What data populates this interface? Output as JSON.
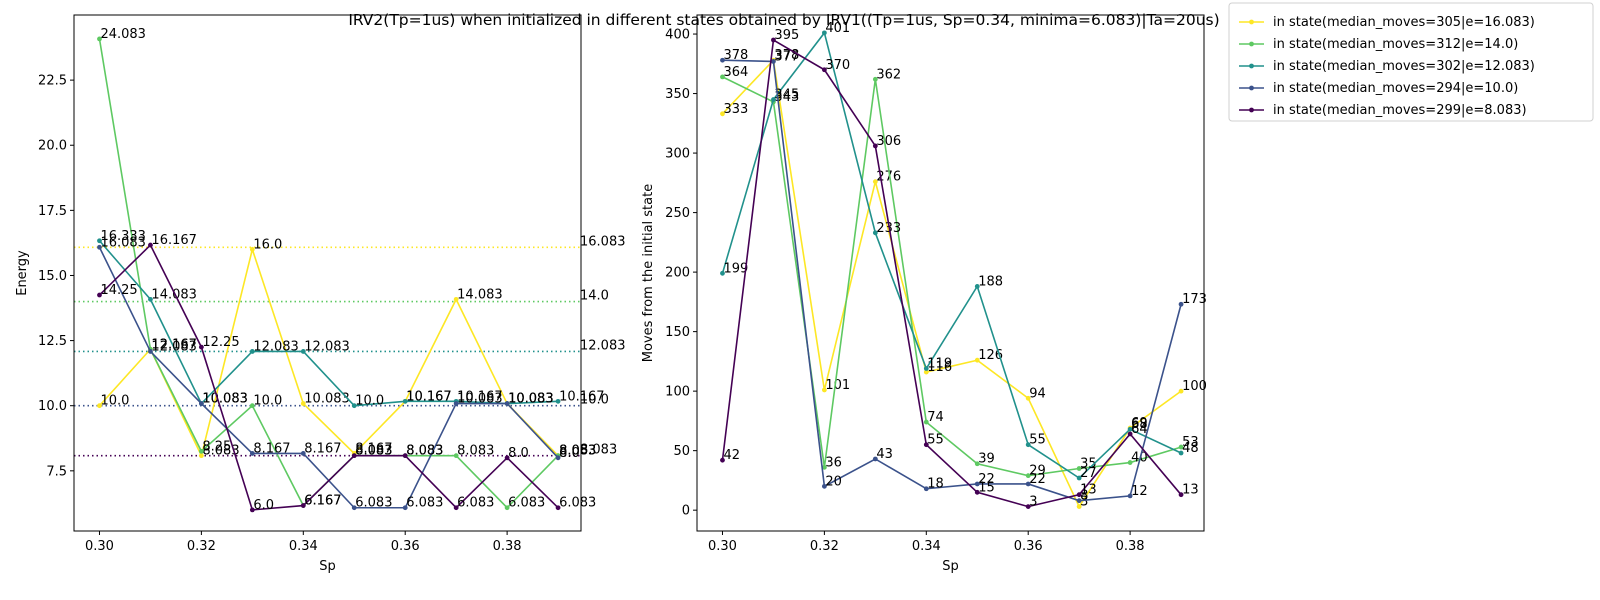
{
  "figure": {
    "suptitle": "IRV2(Tp=1us) when initialized in different states obtained by IRV1((Tp=1us, Sp=0.34, minima=6.083)|Ta=20us)"
  },
  "chart_data": [
    {
      "type": "line",
      "panel": "left",
      "xlabel": "Sp",
      "ylabel": "Energy",
      "xlim": [
        0.295,
        0.3945
      ],
      "ylim": [
        5.19,
        25.0
      ],
      "xticks": [
        "0.30",
        "0.32",
        "0.34",
        "0.36",
        "0.38"
      ],
      "xtick_values": [
        0.3,
        0.32,
        0.34,
        0.36,
        0.38
      ],
      "yticks": [
        "7.5",
        "10.0",
        "12.5",
        "15.0",
        "17.5",
        "20.0",
        "22.5"
      ],
      "ytick_values": [
        7.5,
        10.0,
        12.5,
        15.0,
        17.5,
        20.0,
        22.5
      ],
      "grid": false,
      "x": [
        0.3,
        0.31,
        0.32,
        0.33,
        0.34,
        0.35,
        0.36,
        0.37,
        0.38,
        0.39
      ],
      "series": [
        {
          "name": "in state(median_moves=305|e=16.083)",
          "color": "#fde725",
          "values": [
            10.0,
            12.167,
            8.083,
            16.0,
            10.083,
            8.167,
            10.167,
            14.083,
            10.083,
            8.083
          ],
          "labels": [
            "10.0",
            "12.167",
            "8.083",
            "16.0",
            "10.083",
            "8.167",
            "10.167",
            "14.083",
            "10.083",
            "8.083"
          ],
          "reference": 16.083,
          "reference_label": "16.083"
        },
        {
          "name": "in state(median_moves=312|e=14.0)",
          "color": "#5ec962",
          "values": [
            24.083,
            12.167,
            8.25,
            10.0,
            6.167,
            8.083,
            8.083,
            8.083,
            6.083,
            8.083
          ],
          "labels": [
            "24.083",
            "12.167",
            "8.25",
            "10.0",
            "6.167",
            "8.083",
            "8.083",
            "8.083",
            "6.083",
            "8.083"
          ],
          "reference": 14.0,
          "reference_label": "14.0"
        },
        {
          "name": "in state(median_moves=302|e=12.083)",
          "color": "#21918c",
          "values": [
            16.333,
            14.083,
            10.083,
            12.083,
            12.083,
            10.0,
            10.167,
            10.167,
            10.083,
            10.167
          ],
          "labels": [
            "16.333",
            "14.083",
            "10.083",
            "12.083",
            "12.083",
            "10.0",
            "10.167",
            "10.167",
            "10.083",
            "10.167"
          ],
          "reference": 12.083,
          "reference_label": "12.083"
        },
        {
          "name": "in state(median_moves=294|e=10.0)",
          "color": "#3b528b",
          "values": [
            16.083,
            12.083,
            10.083,
            8.167,
            8.167,
            6.083,
            6.083,
            10.083,
            10.083,
            8.0
          ],
          "labels": [
            "16.083",
            "12.083",
            "10.083",
            "8.167",
            "8.167",
            "6.083",
            "6.083",
            "10.083",
            "10.083",
            "8.0"
          ],
          "reference": 10.0,
          "reference_label": "10.0"
        },
        {
          "name": "in state(median_moves=299|e=8.083)",
          "color": "#440154",
          "values": [
            14.25,
            16.167,
            12.25,
            6.0,
            6.167,
            8.083,
            8.083,
            6.083,
            8.0,
            6.083
          ],
          "labels": [
            "14.25",
            "16.167",
            "12.25",
            "6.0",
            "6.167",
            "8.083",
            "8.083",
            "6.083",
            "8.0",
            "6.083"
          ],
          "reference": 8.083,
          "reference_label": "8.083"
        }
      ]
    },
    {
      "type": "line",
      "panel": "right",
      "xlabel": "Sp",
      "ylabel": "Moves from the initial state",
      "xlim": [
        0.295,
        0.3945
      ],
      "ylim": [
        -17.5,
        416
      ],
      "xticks": [
        "0.30",
        "0.32",
        "0.34",
        "0.36",
        "0.38"
      ],
      "xtick_values": [
        0.3,
        0.32,
        0.34,
        0.36,
        0.38
      ],
      "yticks": [
        "0",
        "50",
        "100",
        "150",
        "200",
        "250",
        "300",
        "350",
        "400"
      ],
      "ytick_values": [
        0,
        50,
        100,
        150,
        200,
        250,
        300,
        350,
        400
      ],
      "grid": false,
      "legend": "outside-top-right",
      "x": [
        0.3,
        0.31,
        0.32,
        0.33,
        0.34,
        0.35,
        0.36,
        0.37,
        0.38,
        0.39
      ],
      "series": [
        {
          "name": "in state(median_moves=305|e=16.083)",
          "color": "#fde725",
          "values": [
            333,
            378,
            101,
            276,
            116,
            126,
            94,
            3,
            69,
            100
          ],
          "labels": [
            "333",
            "378",
            "101",
            "276",
            "116",
            "126",
            "94",
            "3",
            "69",
            "100"
          ]
        },
        {
          "name": "in state(median_moves=312|e=14.0)",
          "color": "#5ec962",
          "values": [
            364,
            343,
            36,
            362,
            74,
            39,
            29,
            35,
            40,
            53
          ],
          "labels": [
            "364",
            "343",
            "36",
            "362",
            "74",
            "39",
            "29",
            "35",
            "40",
            "53"
          ]
        },
        {
          "name": "in state(median_moves=302|e=12.083)",
          "color": "#21918c",
          "values": [
            199,
            345,
            401,
            233,
            119,
            188,
            55,
            27,
            68,
            48
          ],
          "labels": [
            "199",
            "345",
            "401",
            "233",
            "119",
            "188",
            "55",
            "27",
            "68",
            "48"
          ]
        },
        {
          "name": "in state(median_moves=294|e=10.0)",
          "color": "#3b528b",
          "values": [
            378,
            377,
            20,
            43,
            18,
            22,
            22,
            8,
            12,
            173
          ],
          "labels": [
            "378",
            "377",
            "20",
            "43",
            "18",
            "22",
            "22",
            "8",
            "12",
            "173"
          ]
        },
        {
          "name": "in state(median_moves=299|e=8.083)",
          "color": "#440154",
          "values": [
            42,
            395,
            370,
            306,
            55,
            15,
            3,
            13,
            64,
            13
          ],
          "labels": [
            "42",
            "395",
            "370",
            "306",
            "55",
            "15",
            "3",
            "13",
            "64",
            "13"
          ]
        }
      ]
    }
  ]
}
